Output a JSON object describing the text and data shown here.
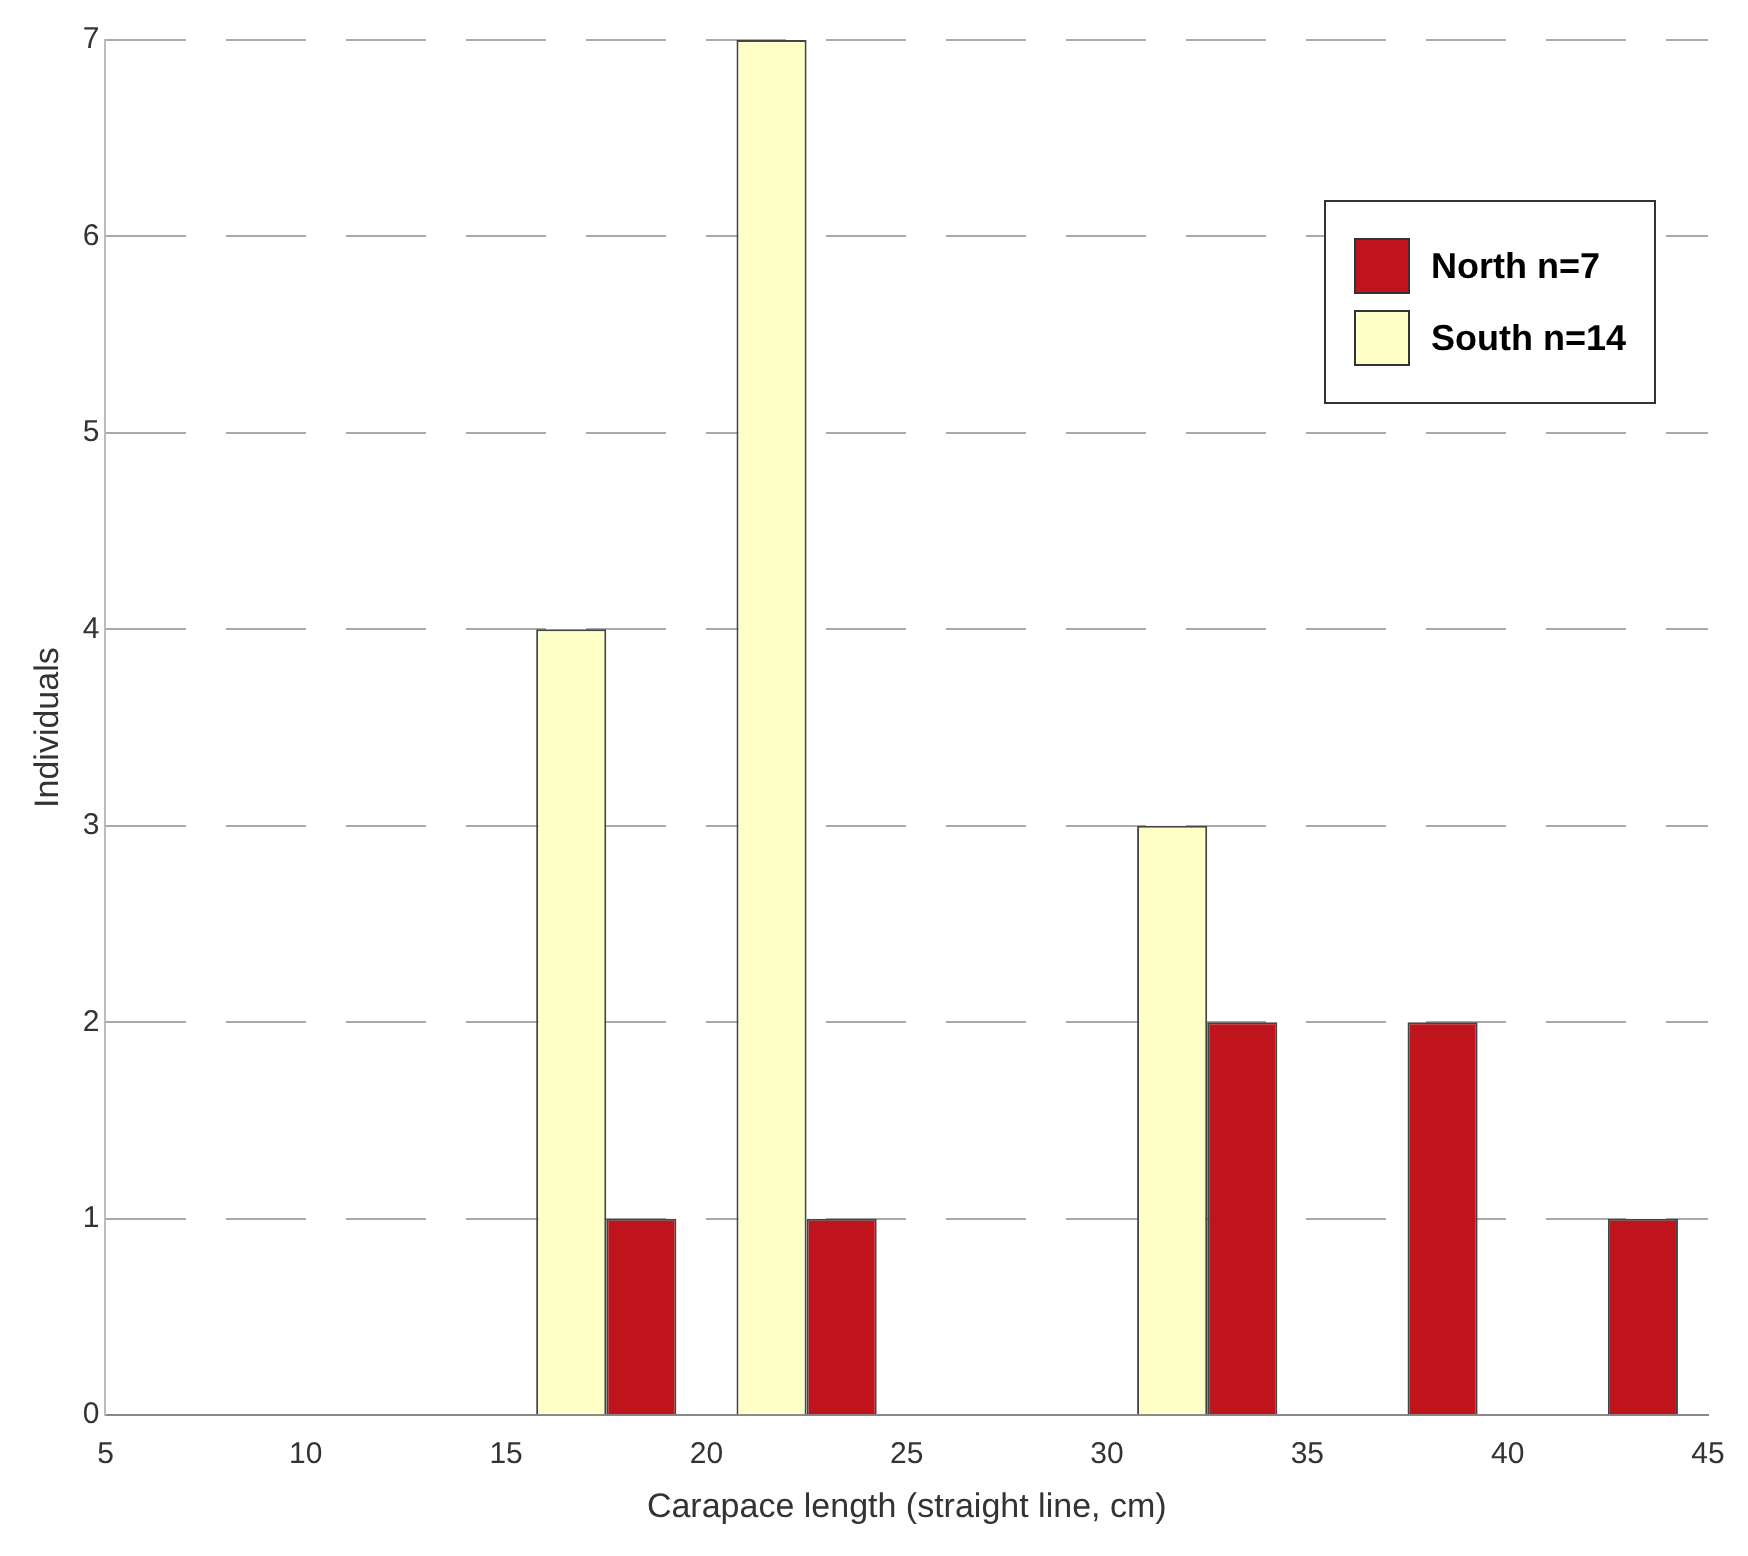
{
  "chart_data": {
    "type": "histogram",
    "xlabel": "Carapace length (straight line, cm)",
    "ylabel": "Individuals",
    "bins": [
      5,
      10,
      15,
      20,
      25,
      30,
      35,
      40,
      45
    ],
    "series": [
      {
        "name": "South n=14",
        "color": "#ffffc8",
        "values": [
          0,
          0,
          4,
          7,
          0,
          3,
          0,
          0
        ]
      },
      {
        "name": "North n=7",
        "color": "#c0141c",
        "values": [
          0,
          0,
          1,
          1,
          0,
          2,
          2,
          1
        ]
      }
    ],
    "xlim": [
      5,
      45
    ],
    "xticks": [
      5,
      10,
      15,
      20,
      25,
      30,
      35,
      40,
      45
    ],
    "ylim": [
      0,
      7
    ],
    "yticks": [
      0,
      1,
      2,
      3,
      4,
      5,
      6,
      7
    ],
    "grid": "y",
    "legend": "top right"
  }
}
